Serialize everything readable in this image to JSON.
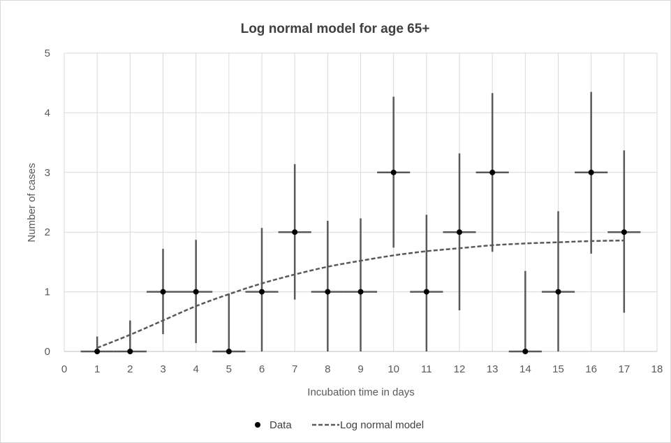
{
  "chart_data": {
    "type": "scatter",
    "title": "Log normal model for age 65+",
    "xlabel": "Incubation time in days",
    "ylabel": "Number of cases",
    "xlim": [
      0,
      18
    ],
    "ylim": [
      0,
      5
    ],
    "xticks": [
      0,
      1,
      2,
      3,
      4,
      5,
      6,
      7,
      8,
      9,
      10,
      11,
      12,
      13,
      14,
      15,
      16,
      17,
      18
    ],
    "yticks": [
      0,
      1,
      2,
      3,
      4,
      5
    ],
    "grid": true,
    "legend": "bottom",
    "series": [
      {
        "name": "Data",
        "kind": "points",
        "color": "#000000",
        "x": [
          1,
          2,
          3,
          4,
          5,
          6,
          7,
          8,
          9,
          10,
          11,
          12,
          13,
          14,
          15,
          16,
          17
        ],
        "y": [
          0,
          0,
          1,
          1,
          0,
          1,
          2,
          1,
          1,
          3,
          1,
          2,
          3,
          0,
          1,
          3,
          2
        ],
        "y_err_low": [
          0,
          0,
          0.29,
          0.14,
          0,
          0,
          0.87,
          0,
          0,
          1.74,
          0,
          0.69,
          1.67,
          0,
          0,
          1.64,
          0.65
        ],
        "y_err_high": [
          0.25,
          0.52,
          1.72,
          1.87,
          0.97,
          2.07,
          3.14,
          2.19,
          2.23,
          4.27,
          2.29,
          3.32,
          4.33,
          1.35,
          2.35,
          4.35,
          3.37
        ],
        "x_err_low": [
          0.5,
          1.5,
          2.5,
          3.5,
          4.5,
          5.5,
          6.5,
          7.5,
          8.5,
          9.5,
          10.5,
          11.5,
          12.5,
          13.5,
          14.5,
          15.5,
          16.5
        ],
        "x_err_high": [
          1.5,
          2.5,
          3.5,
          4.5,
          5.5,
          6.5,
          7.5,
          8.5,
          9.5,
          10.5,
          11.5,
          12.5,
          13.5,
          14.5,
          15.5,
          16.5,
          17.5
        ]
      },
      {
        "name": "Log normal model",
        "kind": "dashed-line",
        "color": "#595959",
        "x": [
          1,
          2,
          3,
          4,
          5,
          6,
          7,
          8,
          9,
          10,
          11,
          12,
          13,
          14,
          15,
          16,
          17
        ],
        "y": [
          0.06,
          0.28,
          0.52,
          0.76,
          0.96,
          1.14,
          1.29,
          1.42,
          1.52,
          1.61,
          1.68,
          1.73,
          1.78,
          1.81,
          1.83,
          1.85,
          1.86
        ]
      }
    ]
  }
}
